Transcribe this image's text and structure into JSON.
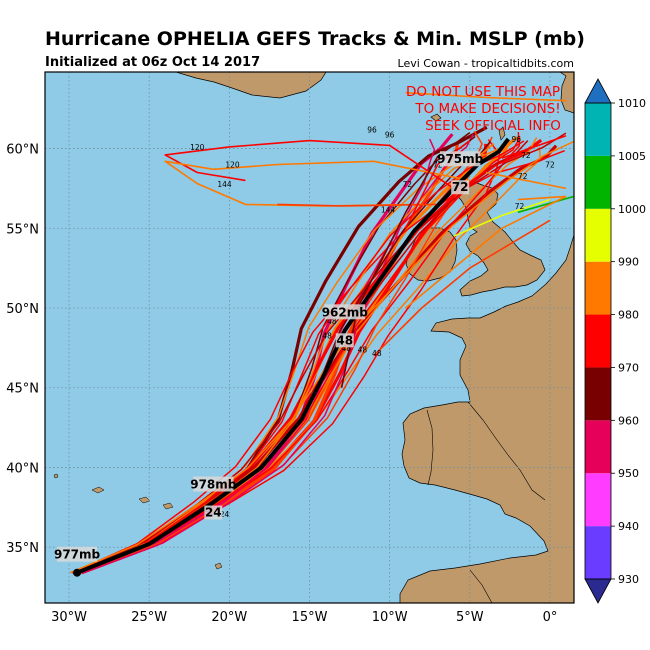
{
  "title": "Hurricane OPHELIA GEFS Tracks & Min. MSLP (mb)",
  "subtitle": "Initialized at 06z Oct 14 2017",
  "credit": "Levi Cowan - tropicaltidbits.com",
  "warning": [
    "DO NOT USE THIS MAP",
    "TO MAKE DECISIONS!",
    "SEEK OFFICIAL INFO"
  ],
  "colors": {
    "ocean": "#8fcbe6",
    "land": "#c0996b",
    "mean_track": "#000000",
    "warning": "#ff0000"
  },
  "map": {
    "lon_range": [
      -31.5,
      1.5
    ],
    "lat_range": [
      31.5,
      64.8
    ],
    "lon_ticks": [
      "30°W",
      "25°W",
      "20°W",
      "15°W",
      "10°W",
      "5°W",
      "0°"
    ],
    "lat_ticks": [
      "35°N",
      "40°N",
      "45°N",
      "50°N",
      "55°N",
      "60°N"
    ]
  },
  "mean_track": {
    "points": [
      {
        "lon": -29.5,
        "lat": 33.4
      },
      {
        "lon": -25.0,
        "lat": 35.2
      },
      {
        "lon": -21.0,
        "lat": 37.8
      },
      {
        "lon": -18.0,
        "lat": 40.0
      },
      {
        "lon": -15.5,
        "lat": 43.0
      },
      {
        "lon": -14.0,
        "lat": 46.0
      },
      {
        "lon": -12.8,
        "lat": 48.6
      },
      {
        "lon": -10.8,
        "lat": 51.5
      },
      {
        "lon": -8.5,
        "lat": 54.8
      },
      {
        "lon": -6.0,
        "lat": 57.5
      },
      {
        "lon": -4.5,
        "lat": 59.0
      },
      {
        "lon": -3.2,
        "lat": 59.8
      },
      {
        "lon": -2.6,
        "lat": 60.6
      }
    ],
    "labels": [
      {
        "lon": -29.5,
        "lat": 33.4,
        "pressure": "977mb",
        "hour": ""
      },
      {
        "lon": -21.0,
        "lat": 37.8,
        "pressure": "978mb",
        "hour": "24"
      },
      {
        "lon": -12.8,
        "lat": 48.6,
        "pressure": "962mb",
        "hour": "48"
      },
      {
        "lon": -5.6,
        "lat": 58.2,
        "pressure": "975mb",
        "hour": "72"
      }
    ]
  },
  "member_labels": [
    {
      "lon": -21.3,
      "lat": 37.2,
      "text": "24"
    },
    {
      "lon": -20.3,
      "lat": 36.9,
      "text": "24"
    },
    {
      "lon": -13.6,
      "lat": 49.0,
      "text": "48"
    },
    {
      "lon": -13.9,
      "lat": 48.1,
      "text": "48"
    },
    {
      "lon": -12.7,
      "lat": 47.3,
      "text": "48"
    },
    {
      "lon": -10.8,
      "lat": 47.0,
      "text": "48"
    },
    {
      "lon": -11.7,
      "lat": 47.2,
      "text": "48"
    },
    {
      "lon": -5.6,
      "lat": 57.6,
      "text": "72"
    },
    {
      "lon": -7.0,
      "lat": 58.8,
      "text": "72"
    },
    {
      "lon": -1.7,
      "lat": 58.1,
      "text": "72"
    },
    {
      "lon": -1.9,
      "lat": 56.2,
      "text": "72"
    },
    {
      "lon": -8.9,
      "lat": 57.6,
      "text": "72"
    },
    {
      "lon": 0.0,
      "lat": 58.8,
      "text": "72"
    },
    {
      "lon": -1.5,
      "lat": 59.4,
      "text": "72"
    },
    {
      "lon": -22.0,
      "lat": 59.9,
      "text": "120"
    },
    {
      "lon": -19.8,
      "lat": 58.8,
      "text": "120"
    },
    {
      "lon": -20.3,
      "lat": 57.6,
      "text": "144"
    },
    {
      "lon": -11.1,
      "lat": 61.0,
      "text": "96"
    },
    {
      "lon": -10.0,
      "lat": 60.7,
      "text": "96"
    },
    {
      "lon": -10.1,
      "lat": 56.0,
      "text": "144"
    },
    {
      "lon": -2.1,
      "lat": 60.4,
      "text": "96"
    }
  ],
  "colorbar": {
    "levels": [
      "930",
      "940",
      "950",
      "960",
      "970",
      "980",
      "990",
      "1000",
      "1005",
      "1010"
    ],
    "colors": [
      "#6a3cff",
      "#ff3cff",
      "#e6005a",
      "#780000",
      "#ff0000",
      "#ff7800",
      "#e6ff00",
      "#00b400",
      "#00b4b4"
    ],
    "under_color": "#2a2a90",
    "over_color": "#1f6fc0"
  }
}
